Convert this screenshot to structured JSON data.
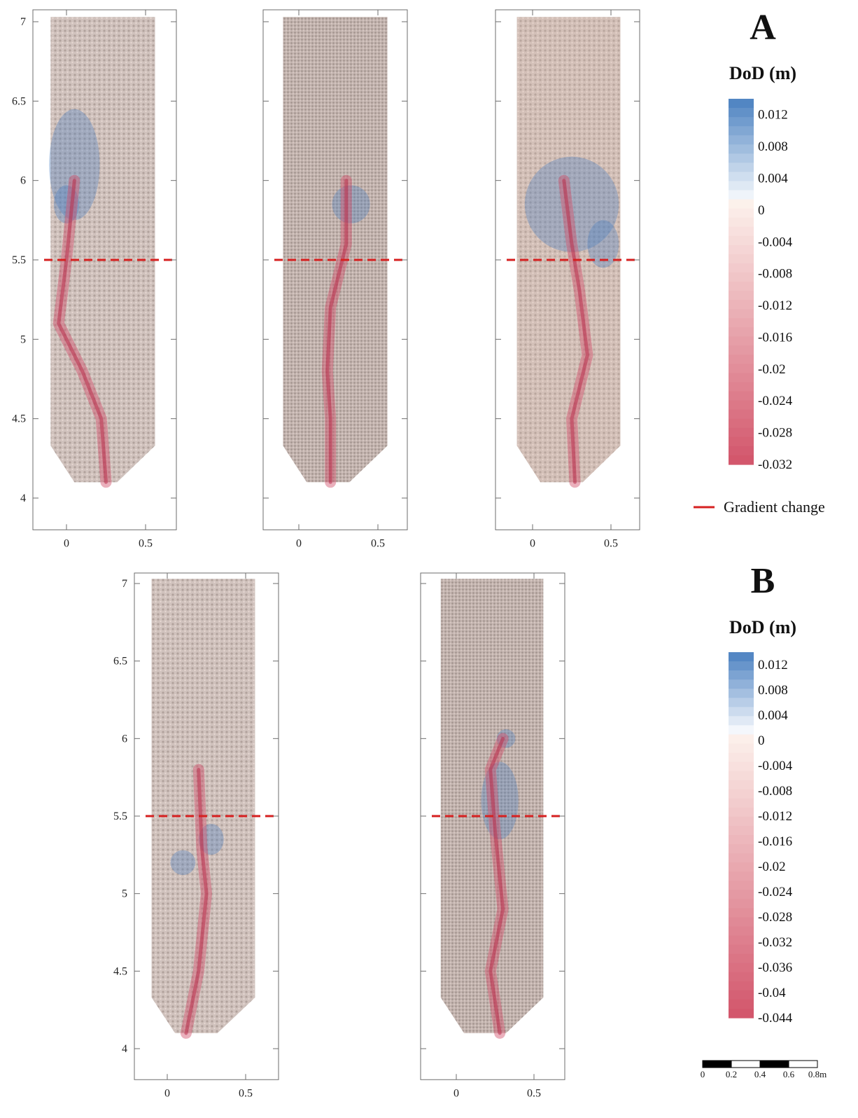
{
  "panel_labels": {
    "A": "A",
    "B": "B"
  },
  "legends": {
    "A": {
      "title": "DoD (m)",
      "values": [
        "0.012",
        "0.008",
        "0.004",
        "0",
        "-0.004",
        "-0.008",
        "-0.012",
        "-0.016",
        "-0.02",
        "-0.024",
        "-0.028",
        "-0.032"
      ],
      "min": -0.032,
      "max": 0.012
    },
    "B": {
      "title": "DoD (m)",
      "values": [
        "0.012",
        "0.008",
        "0.004",
        "0",
        "-0.004",
        "-0.008",
        "-0.012",
        "-0.016",
        "-0.02",
        "-0.024",
        "-0.028",
        "-0.032",
        "-0.036",
        "-0.04",
        "-0.044"
      ],
      "min": -0.044,
      "max": 0.012
    }
  },
  "gradient_change": {
    "label": "Gradient change",
    "y_value": 5.5,
    "color": "#d62020"
  },
  "colors": {
    "deposition": "#4a7fc0",
    "erosion": "#d1506a",
    "neutral": "#ffffff"
  },
  "axes": {
    "y_ticks": [
      "4",
      "4.5",
      "5",
      "5.5",
      "6",
      "6.5",
      "7"
    ],
    "x_ticks": [
      "0",
      "0.5"
    ],
    "y_range": [
      3.8,
      7.08
    ],
    "x_range": [
      -0.2,
      0.7
    ]
  },
  "scale_bar": {
    "labels": [
      "0",
      "0.2",
      "0.4",
      "0.6",
      "0.8"
    ],
    "unit": "m"
  },
  "maps": [
    {
      "id": "A1",
      "group": "A"
    },
    {
      "id": "A2",
      "group": "A"
    },
    {
      "id": "A3",
      "group": "A"
    },
    {
      "id": "B1",
      "group": "B"
    },
    {
      "id": "B2",
      "group": "B"
    }
  ]
}
